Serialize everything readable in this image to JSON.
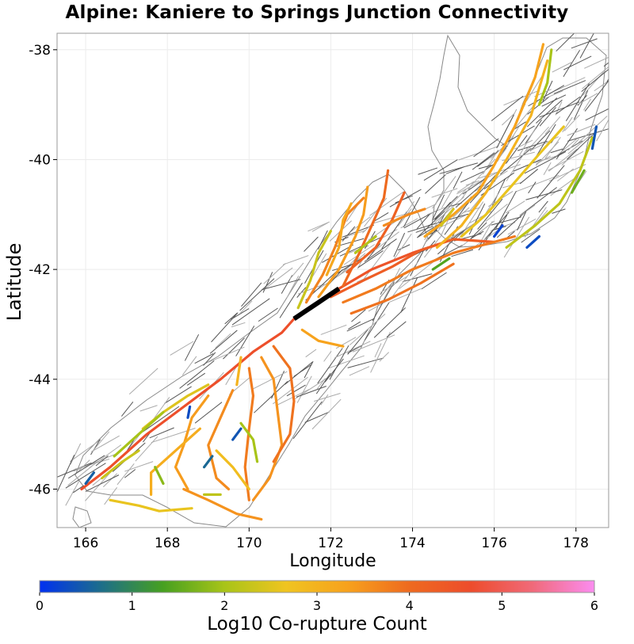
{
  "title": "Alpine: Kaniere to Springs Junction Connectivity",
  "chart_data": {
    "type": "map",
    "title": "Alpine: Kaniere to Springs Junction Connectivity",
    "xlabel": "Longitude",
    "ylabel": "Latitude",
    "xlim": [
      165.3,
      178.8
    ],
    "ylim": [
      -46.7,
      -37.7
    ],
    "x_ticks": [
      "166",
      "168",
      "170",
      "172",
      "174",
      "176",
      "178"
    ],
    "x_tick_values": [
      166,
      168,
      170,
      172,
      174,
      176,
      178
    ],
    "y_ticks": [
      "-38",
      "-40",
      "-42",
      "-44",
      "-46"
    ],
    "y_tick_values": [
      -38,
      -40,
      -42,
      -44,
      -46
    ],
    "colorbar": {
      "label": "Log10 Co-rupture Count",
      "range": [
        0,
        6
      ],
      "ticks": [
        "0",
        "1",
        "2",
        "3",
        "4",
        "5",
        "6"
      ],
      "tick_values": [
        0,
        1,
        2,
        3,
        4,
        5,
        6
      ],
      "colors": [
        "#0030f0",
        "#1d6e8a",
        "#46a020",
        "#a8c418",
        "#f0c420",
        "#f7a11d",
        "#ee6a1f",
        "#ed4c2c",
        "#f06a7a",
        "#fb8cf0"
      ]
    },
    "source_fault": {
      "name": "Alpine: Kaniere to Springs Junction",
      "path": [
        [
          171.1,
          -42.9
        ],
        [
          171.7,
          -42.6
        ],
        [
          172.2,
          -42.35
        ]
      ]
    },
    "faults": [
      {
        "value": 4.6,
        "path": [
          [
            165.9,
            -46.0
          ],
          [
            166.6,
            -45.6
          ],
          [
            167.5,
            -45.0
          ],
          [
            168.4,
            -44.5
          ],
          [
            169.3,
            -44.0
          ],
          [
            170.1,
            -43.5
          ],
          [
            170.8,
            -43.15
          ],
          [
            171.1,
            -42.9
          ]
        ]
      },
      {
        "value": 4.5,
        "path": [
          [
            172.2,
            -42.35
          ],
          [
            173.0,
            -42.0
          ],
          [
            174.0,
            -41.7
          ],
          [
            174.6,
            -41.55
          ]
        ]
      },
      {
        "value": 4.3,
        "path": [
          [
            172.0,
            -42.5
          ],
          [
            172.8,
            -42.2
          ],
          [
            173.5,
            -41.95
          ],
          [
            174.2,
            -41.65
          ],
          [
            175.0,
            -41.45
          ],
          [
            176.0,
            -41.5
          ]
        ]
      },
      {
        "value": 3.8,
        "path": [
          [
            172.3,
            -42.6
          ],
          [
            173.1,
            -42.35
          ],
          [
            174.0,
            -42.0
          ],
          [
            175.0,
            -41.7
          ],
          [
            176.5,
            -41.4
          ]
        ]
      },
      {
        "value": 3.9,
        "path": [
          [
            172.5,
            -42.8
          ],
          [
            173.4,
            -42.55
          ],
          [
            174.2,
            -42.25
          ],
          [
            175.0,
            -41.9
          ]
        ]
      },
      {
        "value": 3.3,
        "path": [
          [
            174.3,
            -41.4
          ],
          [
            175.0,
            -41.0
          ],
          [
            175.6,
            -40.6
          ],
          [
            176.0,
            -40.1
          ],
          [
            176.5,
            -39.4
          ],
          [
            177.0,
            -38.5
          ],
          [
            177.2,
            -37.9
          ]
        ]
      },
      {
        "value": 3.0,
        "path": [
          [
            174.6,
            -41.6
          ],
          [
            175.2,
            -41.2
          ],
          [
            175.8,
            -40.6
          ],
          [
            176.3,
            -40.0
          ],
          [
            176.9,
            -39.2
          ],
          [
            177.3,
            -38.2
          ]
        ]
      },
      {
        "value": 2.6,
        "path": [
          [
            175.2,
            -41.4
          ],
          [
            175.8,
            -41.0
          ],
          [
            176.4,
            -40.5
          ],
          [
            177.1,
            -39.9
          ],
          [
            177.7,
            -39.4
          ]
        ]
      },
      {
        "value": 2.2,
        "path": [
          [
            176.3,
            -41.6
          ],
          [
            177.0,
            -41.2
          ],
          [
            177.6,
            -40.8
          ],
          [
            178.1,
            -40.2
          ],
          [
            178.4,
            -39.6
          ]
        ]
      },
      {
        "value": 2.0,
        "path": [
          [
            177.1,
            -39.0
          ],
          [
            177.3,
            -38.6
          ],
          [
            177.4,
            -38.0
          ]
        ]
      },
      {
        "value": 1.6,
        "path": [
          [
            177.9,
            -40.6
          ],
          [
            178.2,
            -40.2
          ]
        ]
      },
      {
        "value": 0.4,
        "path": [
          [
            178.4,
            -39.8
          ],
          [
            178.5,
            -39.4
          ]
        ]
      },
      {
        "value": 0.3,
        "path": [
          [
            176.8,
            -41.6
          ],
          [
            177.1,
            -41.4
          ]
        ]
      },
      {
        "value": 0.2,
        "path": [
          [
            176.0,
            -41.4
          ],
          [
            176.2,
            -41.2
          ]
        ]
      },
      {
        "value": 1.4,
        "path": [
          [
            174.5,
            -42.0
          ],
          [
            174.9,
            -41.8
          ]
        ]
      },
      {
        "value": 3.7,
        "path": [
          [
            171.4,
            -42.6
          ],
          [
            171.8,
            -42.1
          ],
          [
            172.1,
            -41.6
          ],
          [
            172.4,
            -41.0
          ],
          [
            172.8,
            -40.7
          ]
        ]
      },
      {
        "value": 3.4,
        "path": [
          [
            171.7,
            -42.5
          ],
          [
            172.2,
            -42.0
          ],
          [
            172.6,
            -41.4
          ],
          [
            172.8,
            -41.0
          ],
          [
            172.9,
            -40.5
          ]
        ]
      },
      {
        "value": 4.0,
        "path": [
          [
            172.3,
            -42.3
          ],
          [
            172.7,
            -41.7
          ],
          [
            173.0,
            -41.2
          ],
          [
            173.3,
            -40.7
          ],
          [
            173.4,
            -40.2
          ]
        ]
      },
      {
        "value": 4.2,
        "path": [
          [
            172.4,
            -42.05
          ],
          [
            173.1,
            -41.6
          ],
          [
            173.5,
            -41.1
          ],
          [
            173.8,
            -40.6
          ]
        ]
      },
      {
        "value": 3.2,
        "path": [
          [
            171.9,
            -42.1
          ],
          [
            172.2,
            -41.6
          ],
          [
            172.3,
            -41.1
          ],
          [
            172.5,
            -40.8
          ]
        ]
      },
      {
        "value": 2.3,
        "path": [
          [
            171.2,
            -42.7
          ],
          [
            171.5,
            -42.2
          ],
          [
            171.7,
            -41.7
          ],
          [
            172.0,
            -41.3
          ]
        ]
      },
      {
        "value": 2.1,
        "path": [
          [
            172.6,
            -41.7
          ],
          [
            173.1,
            -41.4
          ]
        ]
      },
      {
        "value": 3.6,
        "path": [
          [
            173.3,
            -41.2
          ],
          [
            173.9,
            -41.0
          ],
          [
            174.3,
            -40.9
          ]
        ]
      },
      {
        "value": 2.4,
        "path": [
          [
            174.7,
            -41.2
          ],
          [
            175.0,
            -40.9
          ]
        ]
      },
      {
        "value": 3.5,
        "path": [
          [
            170.3,
            -43.6
          ],
          [
            170.6,
            -44.0
          ],
          [
            170.7,
            -44.6
          ],
          [
            170.8,
            -45.2
          ],
          [
            170.5,
            -45.8
          ],
          [
            170.1,
            -46.2
          ]
        ]
      },
      {
        "value": 3.8,
        "path": [
          [
            170.0,
            -43.8
          ],
          [
            170.1,
            -44.3
          ],
          [
            170.0,
            -44.9
          ],
          [
            169.9,
            -45.6
          ],
          [
            170.0,
            -46.2
          ]
        ]
      },
      {
        "value": 3.6,
        "path": [
          [
            169.6,
            -44.2
          ],
          [
            169.3,
            -44.7
          ],
          [
            169.0,
            -45.2
          ],
          [
            169.2,
            -45.8
          ],
          [
            169.5,
            -46.0
          ]
        ]
      },
      {
        "value": 3.4,
        "path": [
          [
            169.0,
            -44.3
          ],
          [
            168.6,
            -44.7
          ],
          [
            168.4,
            -45.2
          ],
          [
            168.2,
            -45.6
          ],
          [
            168.5,
            -46.0
          ]
        ]
      },
      {
        "value": 3.1,
        "path": [
          [
            168.8,
            -44.9
          ],
          [
            168.2,
            -45.3
          ],
          [
            167.6,
            -45.7
          ],
          [
            167.6,
            -46.1
          ]
        ]
      },
      {
        "value": 3.9,
        "path": [
          [
            170.6,
            -43.4
          ],
          [
            171.0,
            -43.8
          ],
          [
            171.1,
            -44.4
          ],
          [
            171.0,
            -45.0
          ],
          [
            170.6,
            -45.5
          ]
        ]
      },
      {
        "value": 2.5,
        "path": [
          [
            167.4,
            -44.9
          ],
          [
            167.9,
            -44.6
          ],
          [
            168.5,
            -44.3
          ],
          [
            169.0,
            -44.1
          ]
        ]
      },
      {
        "value": 2.0,
        "path": [
          [
            166.7,
            -45.4
          ],
          [
            167.3,
            -45.0
          ],
          [
            167.9,
            -44.6
          ]
        ]
      },
      {
        "value": 2.3,
        "path": [
          [
            166.4,
            -45.8
          ],
          [
            166.9,
            -45.5
          ],
          [
            167.3,
            -45.3
          ]
        ]
      },
      {
        "value": 2.6,
        "path": [
          [
            166.6,
            -46.2
          ],
          [
            167.3,
            -46.3
          ],
          [
            167.8,
            -46.4
          ],
          [
            168.6,
            -46.35
          ]
        ]
      },
      {
        "value": 3.5,
        "path": [
          [
            168.4,
            -46.0
          ],
          [
            169.0,
            -46.2
          ],
          [
            169.7,
            -46.45
          ],
          [
            170.3,
            -46.55
          ]
        ]
      },
      {
        "value": 2.8,
        "path": [
          [
            169.2,
            -45.3
          ],
          [
            169.6,
            -45.6
          ],
          [
            170.0,
            -46.0
          ]
        ]
      },
      {
        "value": 2.0,
        "path": [
          [
            169.8,
            -44.8
          ],
          [
            170.1,
            -45.1
          ],
          [
            170.2,
            -45.5
          ]
        ]
      },
      {
        "value": 0.5,
        "path": [
          [
            166.0,
            -45.9
          ],
          [
            166.2,
            -45.7
          ]
        ]
      },
      {
        "value": 0.4,
        "path": [
          [
            169.6,
            -45.1
          ],
          [
            169.8,
            -44.9
          ]
        ]
      },
      {
        "value": 0.6,
        "path": [
          [
            168.9,
            -45.6
          ],
          [
            169.1,
            -45.4
          ]
        ]
      },
      {
        "value": 0.3,
        "path": [
          [
            168.5,
            -44.7
          ],
          [
            168.55,
            -44.5
          ]
        ]
      },
      {
        "value": 2.2,
        "path": [
          [
            168.9,
            -46.1
          ],
          [
            169.3,
            -46.1
          ]
        ]
      },
      {
        "value": 1.8,
        "path": [
          [
            167.7,
            -45.6
          ],
          [
            167.9,
            -45.9
          ]
        ]
      },
      {
        "value": 3.0,
        "path": [
          [
            169.8,
            -43.6
          ],
          [
            169.7,
            -44.1
          ]
        ]
      },
      {
        "value": 3.3,
        "path": [
          [
            171.3,
            -43.1
          ],
          [
            171.7,
            -43.3
          ],
          [
            172.3,
            -43.4
          ]
        ]
      }
    ]
  }
}
